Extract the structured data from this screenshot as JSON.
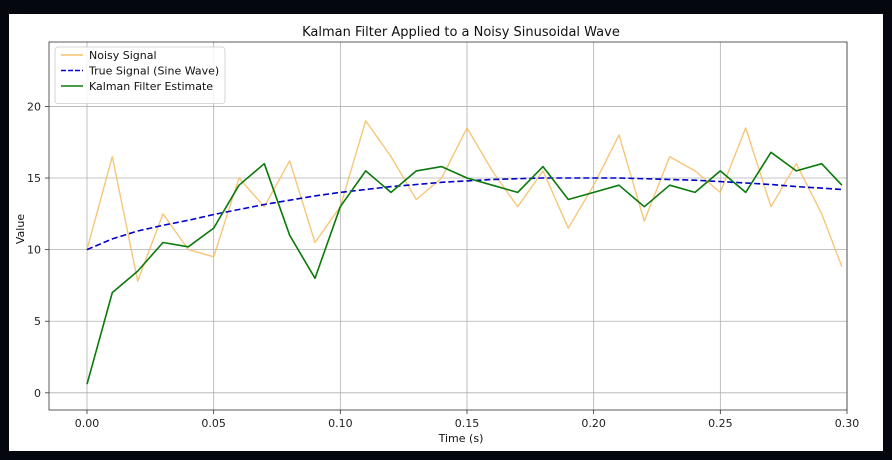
{
  "chart_data": {
    "type": "line",
    "title": "Kalman Filter Applied to a Noisy Sinusoidal Wave",
    "xlabel": "Time (s)",
    "ylabel": "Value",
    "xlim": [
      -0.015,
      0.3
    ],
    "ylim": [
      -1.2,
      24.5
    ],
    "x_ticks": [
      0.0,
      0.05,
      0.1,
      0.15,
      0.2,
      0.25,
      0.3
    ],
    "x_tick_labels": [
      "0.00",
      "0.05",
      "0.10",
      "0.15",
      "0.20",
      "0.25",
      "0.30"
    ],
    "y_ticks": [
      0,
      5,
      10,
      15,
      20
    ],
    "y_tick_labels": [
      "0",
      "5",
      "10",
      "15",
      "20"
    ],
    "grid": true,
    "legend_position": "top-left",
    "x": [
      0.0,
      0.01,
      0.02,
      0.03,
      0.04,
      0.05,
      0.06,
      0.07,
      0.08,
      0.09,
      0.1,
      0.11,
      0.12,
      0.13,
      0.14,
      0.15,
      0.16,
      0.17,
      0.18,
      0.19,
      0.2,
      0.21,
      0.22,
      0.23,
      0.24,
      0.25,
      0.26,
      0.27,
      0.28,
      0.29,
      0.298
    ],
    "series": [
      {
        "name": "Noisy Signal",
        "color": "#f5c06a",
        "style": "solid",
        "values": [
          10.0,
          16.5,
          7.8,
          12.5,
          10.0,
          9.5,
          15.0,
          13.0,
          16.2,
          10.5,
          13.0,
          19.0,
          16.5,
          13.5,
          15.0,
          18.5,
          15.5,
          13.0,
          15.5,
          11.5,
          14.5,
          18.0,
          12.0,
          16.5,
          15.5,
          14.0,
          18.5,
          13.0,
          16.0,
          12.5,
          8.8
        ]
      },
      {
        "name": "True Signal (Sine Wave)",
        "color": "#0000cc",
        "style": "dashed",
        "values": [
          10.0,
          10.75,
          11.3,
          11.7,
          12.05,
          12.45,
          12.8,
          13.15,
          13.45,
          13.75,
          14.0,
          14.2,
          14.4,
          14.55,
          14.7,
          14.8,
          14.9,
          14.95,
          15.0,
          15.0,
          15.0,
          15.0,
          14.95,
          14.9,
          14.85,
          14.75,
          14.65,
          14.55,
          14.4,
          14.3,
          14.2
        ]
      },
      {
        "name": "Kalman Filter Estimate",
        "color": "#0b7a0b",
        "style": "solid",
        "values": [
          0.6,
          7.0,
          8.5,
          10.5,
          10.2,
          11.5,
          14.5,
          16.0,
          11.0,
          8.0,
          13.0,
          15.5,
          14.0,
          15.5,
          15.8,
          15.0,
          14.5,
          14.0,
          15.8,
          13.5,
          14.0,
          14.5,
          13.0,
          14.5,
          14.0,
          15.5,
          14.0,
          16.8,
          15.5,
          16.0,
          14.5
        ]
      }
    ]
  }
}
